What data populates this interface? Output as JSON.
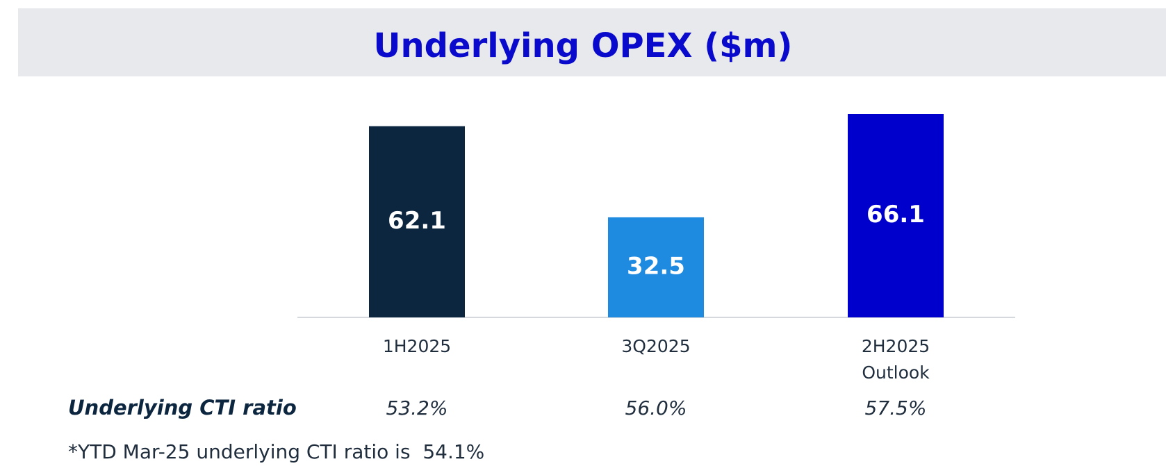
{
  "chart_data": {
    "type": "bar",
    "title": "Underlying OPEX ($m)",
    "categories": [
      "1H2025",
      "3Q2025",
      "2H2025\nOutlook"
    ],
    "values": [
      62.1,
      32.5,
      66.1
    ],
    "colors": [
      "#0d2640",
      "#1e8ae0",
      "#0000cc"
    ],
    "ratio_label": "Underlying CTI ratio",
    "ratio_values": [
      53.2,
      56.0,
      57.5
    ],
    "ratio_value_labels": [
      "53.2%",
      "56.0%",
      "57.5%"
    ],
    "footnote": "*YTD Mar-25 underlying CTI ratio is  54.1%"
  }
}
